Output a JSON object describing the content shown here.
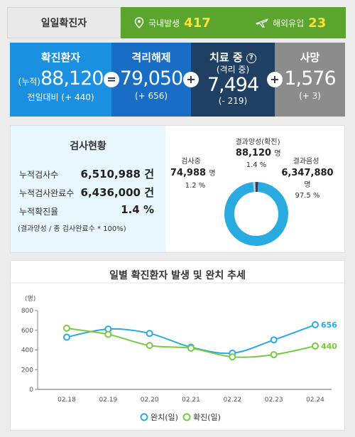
{
  "daily": {
    "label": "일일확진자",
    "domestic_label": "국내발생",
    "domestic_value": "417",
    "overseas_label": "해외유입",
    "overseas_value": "23"
  },
  "stats": {
    "confirmed": {
      "title": "확진환자",
      "prefix": "(누적)",
      "value": "88,120",
      "delta": "전일대비 (+ 440)"
    },
    "released": {
      "title": "격리해제",
      "value": "79,050",
      "delta": "(+ 656)"
    },
    "treatment": {
      "title": "치료 중",
      "subtitle": "(격리 중)",
      "value": "7,494",
      "delta": "(- 219)"
    },
    "deaths": {
      "title": "사망",
      "value": "1,576",
      "delta": "(+ 3)"
    },
    "op_equals": "=",
    "op_plus": "+",
    "help": "?"
  },
  "tests": {
    "title": "검사현황",
    "rows": [
      {
        "label": "누적검사수",
        "value": "6,510,988 건"
      },
      {
        "label": "누적검사완료수",
        "value": "6,436,000 건"
      },
      {
        "label": "누적확진율",
        "value": "1.4 %"
      }
    ],
    "note": "(결과양성 / 총 검사완료수 * 100%)",
    "donut": {
      "positive": {
        "label": "결과양성(확진)",
        "value": "88,120",
        "unit": "명",
        "pct": "1.4 %",
        "fraction": 0.014
      },
      "pending": {
        "label": "검사중",
        "value": "74,988",
        "unit": "명",
        "pct": "1.2 %",
        "fraction": 0.012
      },
      "negative": {
        "label": "결과음성",
        "value": "6,347,880",
        "unit": "명",
        "pct": "97.5 %",
        "fraction": 0.975
      },
      "colors": {
        "negative": "#29abe2",
        "positive": "#2c3e50",
        "pending": "#c8c8c8"
      }
    }
  },
  "chart_data": {
    "type": "line",
    "title": "일별 확진환자 발생 및 완치 추세",
    "ylabel": "(명)",
    "ylim": [
      0,
      800
    ],
    "yticks": [
      0,
      200,
      400,
      600,
      800
    ],
    "categories": [
      "02.18",
      "02.19",
      "02.20",
      "02.21",
      "02.22",
      "02.23",
      "02.24"
    ],
    "series": [
      {
        "name": "완치(일)",
        "color": "#29abe2",
        "values": [
          530,
          612,
          568,
          428,
          368,
          502,
          656
        ],
        "end_label": "656"
      },
      {
        "name": "확진(일)",
        "color": "#7ac943",
        "values": [
          620,
          558,
          445,
          418,
          330,
          352,
          440
        ],
        "end_label": "440"
      }
    ],
    "legend": "bottom"
  }
}
